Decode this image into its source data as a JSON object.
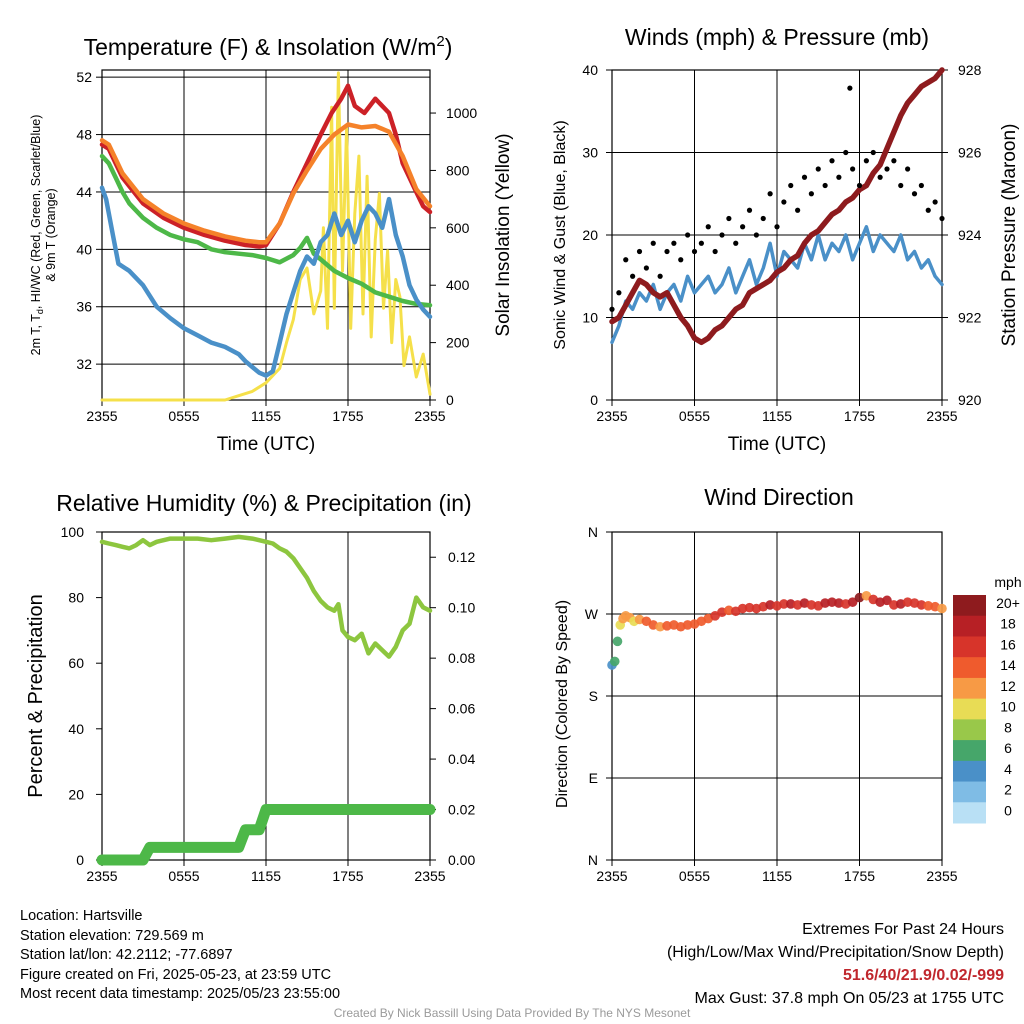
{
  "chart_data": [
    {
      "type": "line",
      "title": "Temperature (F) & Insolation (W/m",
      "title_sup": "2",
      "title_close": ")",
      "xlabel": "Time (UTC)",
      "ylabel_parts": [
        "2m T, T",
        "d",
        ", HI/WC (Red, Green, Scarlet/Blue)"
      ],
      "ylabel_line2": "& 9m T (Orange)",
      "ylabel_right": "Solar Insolation (Yellow)",
      "x_ticks": [
        "2355",
        "0555",
        "1155",
        "1755",
        "2355"
      ],
      "x_range_hours": [
        0,
        24
      ],
      "ylim": [
        29.5,
        52.5
      ],
      "y_ticks": [
        32,
        36,
        40,
        44,
        48,
        52
      ],
      "ylim_right": [
        0,
        1150
      ],
      "y_ticks_right": [
        0,
        200,
        400,
        600,
        800,
        1000
      ],
      "series": [
        {
          "color": "#cc2127",
          "x": [
            0,
            0.5,
            1.5,
            3,
            4.5,
            6,
            7.5,
            9,
            10.5,
            11.5,
            12,
            13,
            14,
            15,
            16,
            16.8,
            17.5,
            18,
            18.5,
            19.2,
            20,
            21,
            21.5,
            22,
            23,
            23.5,
            24
          ],
          "y": [
            47.3,
            47,
            45,
            43.2,
            42.2,
            41.5,
            41,
            40.6,
            40.3,
            40.2,
            40.3,
            41.8,
            44,
            46,
            48,
            49.5,
            50.5,
            51.4,
            50,
            49.5,
            50.5,
            49.5,
            48,
            46,
            44,
            43,
            42.6
          ]
        },
        {
          "color": "#f5822a",
          "x": [
            0,
            0.5,
            1.5,
            3,
            4.5,
            6,
            7.5,
            9,
            10.5,
            11.5,
            12,
            13,
            14,
            15,
            16,
            17,
            18,
            19,
            20,
            21,
            22,
            23,
            24
          ],
          "y": [
            47.6,
            47.3,
            45.3,
            43.5,
            42.5,
            41.8,
            41.3,
            40.9,
            40.6,
            40.5,
            40.5,
            41.8,
            43.9,
            45.5,
            47,
            48,
            48.7,
            48.5,
            48.6,
            48.2,
            46.5,
            44.2,
            43
          ]
        },
        {
          "color": "#4db848",
          "x": [
            0,
            0.5,
            1,
            1.5,
            2,
            3,
            4,
            5,
            6,
            7,
            8,
            9,
            10,
            11,
            12,
            13,
            14,
            14.5,
            15,
            15.5,
            16,
            17,
            18,
            19,
            20,
            21,
            22,
            23,
            24
          ],
          "y": [
            46.5,
            46,
            45,
            44,
            43.2,
            42.2,
            41.5,
            41,
            40.7,
            40.5,
            40,
            39.8,
            39.7,
            39.6,
            39.4,
            39.1,
            39.6,
            40.1,
            40.8,
            39.7,
            39.3,
            38.5,
            38,
            37.6,
            37,
            36.7,
            36.4,
            36.2,
            36.1
          ]
        },
        {
          "color": "#4a90c8",
          "x": [
            0,
            0.3,
            0.8,
            1.2,
            2,
            3,
            4,
            5,
            6,
            7,
            8,
            9,
            10,
            10.5,
            11,
            11.5,
            12,
            12.5,
            13,
            13.5,
            14,
            14.5,
            15,
            15.5,
            16,
            16.5,
            17,
            17.5,
            18,
            18.5,
            19,
            19.5,
            20,
            20.5,
            21,
            21.5,
            22,
            22.5,
            23,
            23.5,
            24
          ],
          "y": [
            44.3,
            43.5,
            41,
            39,
            38.5,
            37.5,
            36,
            35.2,
            34.5,
            34,
            33.5,
            33.2,
            32.7,
            32.2,
            31.8,
            31.4,
            31.2,
            31.5,
            33.5,
            35.5,
            37,
            38.5,
            39.5,
            39,
            40.5,
            41,
            42.5,
            41,
            42,
            40.5,
            42,
            43,
            42.5,
            41.5,
            43.5,
            41,
            39.5,
            37.5,
            36.5,
            35.8,
            35.3
          ]
        }
      ],
      "series_right": [
        {
          "color": "#f5e04a",
          "x": [
            0,
            9,
            10,
            11,
            12,
            13,
            13.5,
            14,
            14.5,
            15,
            15.5,
            16,
            16.2,
            16.5,
            16.8,
            17,
            17.3,
            17.6,
            17.9,
            18.2,
            18.5,
            18.8,
            19.1,
            19.4,
            19.7,
            20,
            20.3,
            20.6,
            20.9,
            21.2,
            21.5,
            21.8,
            22.1,
            22.5,
            23,
            23.5,
            24
          ],
          "y": [
            0,
            0,
            15,
            30,
            60,
            110,
            200,
            280,
            420,
            460,
            300,
            380,
            600,
            250,
            1020,
            320,
            1140,
            450,
            950,
            250,
            650,
            850,
            300,
            780,
            220,
            560,
            720,
            320,
            520,
            200,
            420,
            360,
            120,
            220,
            80,
            160,
            20
          ]
        }
      ]
    },
    {
      "type": "line",
      "title": "Winds (mph) & Pressure (mb)",
      "xlabel": "Time (UTC)",
      "ylabel": "Sonic Wind & Gust (Blue, Black)",
      "ylabel_right": "Station Pressure (Maroon)",
      "x_ticks": [
        "2355",
        "0555",
        "1155",
        "1755",
        "2355"
      ],
      "x_range_hours": [
        0,
        24
      ],
      "ylim": [
        0,
        40
      ],
      "y_ticks": [
        0,
        10,
        20,
        30,
        40
      ],
      "ylim_right": [
        920,
        928
      ],
      "y_ticks_right": [
        920,
        922,
        924,
        926,
        928
      ],
      "series": [
        {
          "color": "#4a90c8",
          "x": [
            0,
            0.5,
            1,
            1.5,
            2,
            2.5,
            3,
            3.5,
            4,
            4.5,
            5,
            5.5,
            6,
            6.5,
            7,
            7.5,
            8,
            8.5,
            9,
            9.5,
            10,
            10.5,
            11,
            11.5,
            12,
            12.5,
            13,
            13.5,
            14,
            14.5,
            15,
            15.5,
            16,
            16.5,
            17,
            17.5,
            18,
            18.5,
            19,
            19.5,
            20,
            20.5,
            21,
            21.5,
            22,
            22.5,
            23,
            23.5,
            24
          ],
          "y": [
            7,
            9,
            12,
            11,
            13,
            12,
            14,
            11,
            13,
            14,
            12,
            15,
            13,
            14,
            15,
            13,
            14,
            16,
            13,
            15,
            17,
            14,
            16,
            19,
            15,
            18,
            17,
            16,
            19,
            17,
            20,
            17,
            19,
            18,
            20,
            17,
            19,
            21,
            18,
            20,
            19,
            18,
            20,
            17,
            18,
            16,
            17,
            15,
            14
          ]
        },
        {
          "color": "#000000",
          "style": "dots",
          "x": [
            0,
            0.5,
            1,
            1.5,
            2,
            2.5,
            3,
            3.5,
            4,
            4.5,
            5,
            5.5,
            6,
            6.5,
            7,
            7.5,
            8,
            8.5,
            9,
            9.5,
            10,
            10.5,
            11,
            11.5,
            12,
            12.5,
            13,
            13.5,
            14,
            14.5,
            15,
            15.5,
            16,
            16.5,
            17,
            17.3,
            17.5,
            18,
            18.5,
            19,
            19.5,
            20,
            20.5,
            21,
            21.5,
            22,
            22.5,
            23,
            23.5,
            24
          ],
          "y": [
            11,
            13,
            17,
            15,
            18,
            16,
            19,
            15,
            18,
            19,
            17,
            20,
            18,
            19,
            21,
            18,
            20,
            22,
            19,
            21,
            23,
            20,
            22,
            25,
            21,
            24,
            26,
            23,
            27,
            25,
            28,
            26,
            29,
            27,
            30,
            37.8,
            28,
            26,
            29,
            30,
            27,
            28,
            29,
            26,
            28,
            25,
            26,
            23,
            24,
            22
          ]
        }
      ],
      "series_right": [
        {
          "color": "#8e1b1e",
          "x": [
            0,
            0.5,
            1,
            1.5,
            2,
            2.5,
            3,
            3.5,
            4,
            4.5,
            5,
            5.5,
            6,
            6.5,
            7,
            7.5,
            8,
            8.5,
            9,
            9.5,
            10,
            10.5,
            11,
            11.5,
            12,
            12.5,
            13,
            13.5,
            14,
            14.5,
            15,
            15.5,
            16,
            16.5,
            17,
            17.5,
            18,
            18.5,
            19,
            19.5,
            20,
            20.5,
            21,
            21.5,
            22,
            22.5,
            23,
            23.5,
            24
          ],
          "y": [
            921.9,
            922,
            922.3,
            922.6,
            922.9,
            922.8,
            922.6,
            922.5,
            922.6,
            922.3,
            922.0,
            921.8,
            921.5,
            921.4,
            921.5,
            921.7,
            921.8,
            922.0,
            922.2,
            922.3,
            922.6,
            922.7,
            922.8,
            922.9,
            923.1,
            923.2,
            923.4,
            923.5,
            923.8,
            924.0,
            924.1,
            924.3,
            924.5,
            924.6,
            924.8,
            924.9,
            925.1,
            925.2,
            925.5,
            925.7,
            926.1,
            926.5,
            926.9,
            927.2,
            927.4,
            927.6,
            927.7,
            927.8,
            928.0
          ]
        }
      ]
    },
    {
      "type": "line",
      "title": "Relative Humidity (%) & Precipitation (in)",
      "ylabel": "Percent & Precipitation",
      "x_ticks": [
        "2355",
        "0555",
        "1155",
        "1755",
        "2355"
      ],
      "x_range_hours": [
        0,
        24
      ],
      "ylim": [
        0,
        100
      ],
      "y_ticks": [
        0,
        20,
        40,
        60,
        80,
        100
      ],
      "ylim_right": [
        0,
        0.13
      ],
      "y_ticks_right": [
        "0.00",
        "0.02",
        "0.04",
        "0.06",
        "0.08",
        "0.10",
        "0.12"
      ],
      "series": [
        {
          "color": "#8dc63f",
          "x": [
            0,
            0.5,
            1,
            1.5,
            2,
            2.5,
            3,
            3.5,
            4,
            5,
            6,
            7,
            8,
            9,
            10,
            11,
            12,
            12.5,
            13,
            13.5,
            14,
            14.5,
            15,
            15.5,
            16,
            16.5,
            17,
            17.3,
            17.6,
            18,
            18.5,
            19,
            19.5,
            20,
            20.5,
            21,
            21.5,
            22,
            22.5,
            23,
            23.5,
            24
          ],
          "y": [
            97,
            96.5,
            96,
            95.5,
            95,
            96,
            97.5,
            96,
            97,
            98,
            98,
            98,
            97.5,
            98,
            98.5,
            98,
            97,
            96.5,
            95,
            94,
            92,
            89,
            86,
            82,
            79,
            77,
            76,
            78,
            70,
            68,
            67,
            69,
            63,
            66,
            64,
            62,
            65,
            70,
            72,
            80,
            77,
            76
          ]
        }
      ],
      "series_right": [
        {
          "color": "#4db848",
          "style": "step",
          "x": [
            0,
            3,
            3.5,
            10,
            10.5,
            11.5,
            12,
            24
          ],
          "y": [
            0.0,
            0.0,
            0.005,
            0.005,
            0.012,
            0.012,
            0.02,
            0.02
          ]
        }
      ]
    },
    {
      "type": "scatter",
      "title": "Wind Direction",
      "ylabel": "Direction (Colored By Speed)",
      "x_ticks": [
        "2355",
        "0555",
        "1155",
        "1755",
        "2355"
      ],
      "x_range_hours": [
        0,
        24
      ],
      "y_ticks": [
        "N",
        "E",
        "S",
        "W",
        "N"
      ],
      "ylim_deg": [
        0,
        360
      ],
      "points": {
        "x": [
          0,
          0.2,
          0.4,
          0.6,
          0.8,
          1.0,
          1.3,
          1.6,
          2.0,
          2.5,
          3.0,
          3.5,
          4.0,
          4.5,
          5.0,
          5.5,
          6.0,
          6.5,
          7.0,
          7.5,
          8.0,
          8.5,
          9.0,
          9.5,
          10.0,
          10.5,
          11.0,
          11.5,
          12.0,
          12.5,
          13.0,
          13.5,
          14.0,
          14.5,
          15.0,
          15.5,
          16.0,
          16.5,
          17.0,
          17.5,
          18.0,
          18.5,
          19.0,
          19.5,
          20.0,
          20.5,
          21.0,
          21.5,
          22.0,
          22.5,
          23.0,
          23.5,
          24.0
        ],
        "y": [
          214,
          218,
          240,
          258,
          265,
          268,
          266,
          262,
          264,
          262,
          258,
          256,
          257,
          258,
          256,
          258,
          259,
          262,
          265,
          268,
          272,
          274,
          273,
          276,
          277,
          276,
          278,
          280,
          279,
          281,
          281,
          280,
          282,
          280,
          279,
          282,
          283,
          282,
          281,
          283,
          288,
          290,
          286,
          283,
          285,
          280,
          281,
          283,
          282,
          280,
          279,
          278,
          276
        ],
        "speed": [
          5,
          6,
          7,
          10,
          12,
          13,
          12,
          11,
          13,
          14,
          14,
          13,
          14,
          14,
          15,
          15,
          14,
          15,
          15,
          16,
          16,
          15,
          16,
          17,
          16,
          17,
          16,
          18,
          17,
          17,
          18,
          17,
          18,
          17,
          17,
          18,
          19,
          18,
          17,
          18,
          20,
          13,
          17,
          19,
          18,
          17,
          18,
          16,
          17,
          16,
          15,
          14,
          13
        ]
      },
      "colorbar_label": "mph",
      "colorbar_ticks": [
        "20+",
        "18",
        "16",
        "14",
        "12",
        "10",
        "8",
        "6",
        "4",
        "2",
        "0"
      ],
      "colorbar_colors": [
        "#8e1b1e",
        "#b72025",
        "#d7342a",
        "#ef5b2d",
        "#f79a45",
        "#e8dc55",
        "#99c84a",
        "#46a66a",
        "#4a90c8",
        "#7fbce5",
        "#b9e0f5"
      ]
    }
  ],
  "info": {
    "location": "Location: Hartsville",
    "elevation": "Station elevation: 729.569 m",
    "latlon": "Station lat/lon: 42.2112; -77.6897",
    "created": "Figure created on Fri, 2025-05-23, at 23:59 UTC",
    "recent": "Most recent data timestamp: 2025/05/23 23:55:00"
  },
  "extremes": {
    "title": "Extremes For Past 24 Hours",
    "subtitle": "(High/Low/Max Wind/Precipitation/Snow Depth)",
    "values": "51.6/40/21.9/0.02/-999",
    "gust": "Max Gust: 37.8 mph On 05/23 at 1755 UTC"
  },
  "credit": "Created By Nick Bassill Using Data Provided By The NYS Mesonet"
}
